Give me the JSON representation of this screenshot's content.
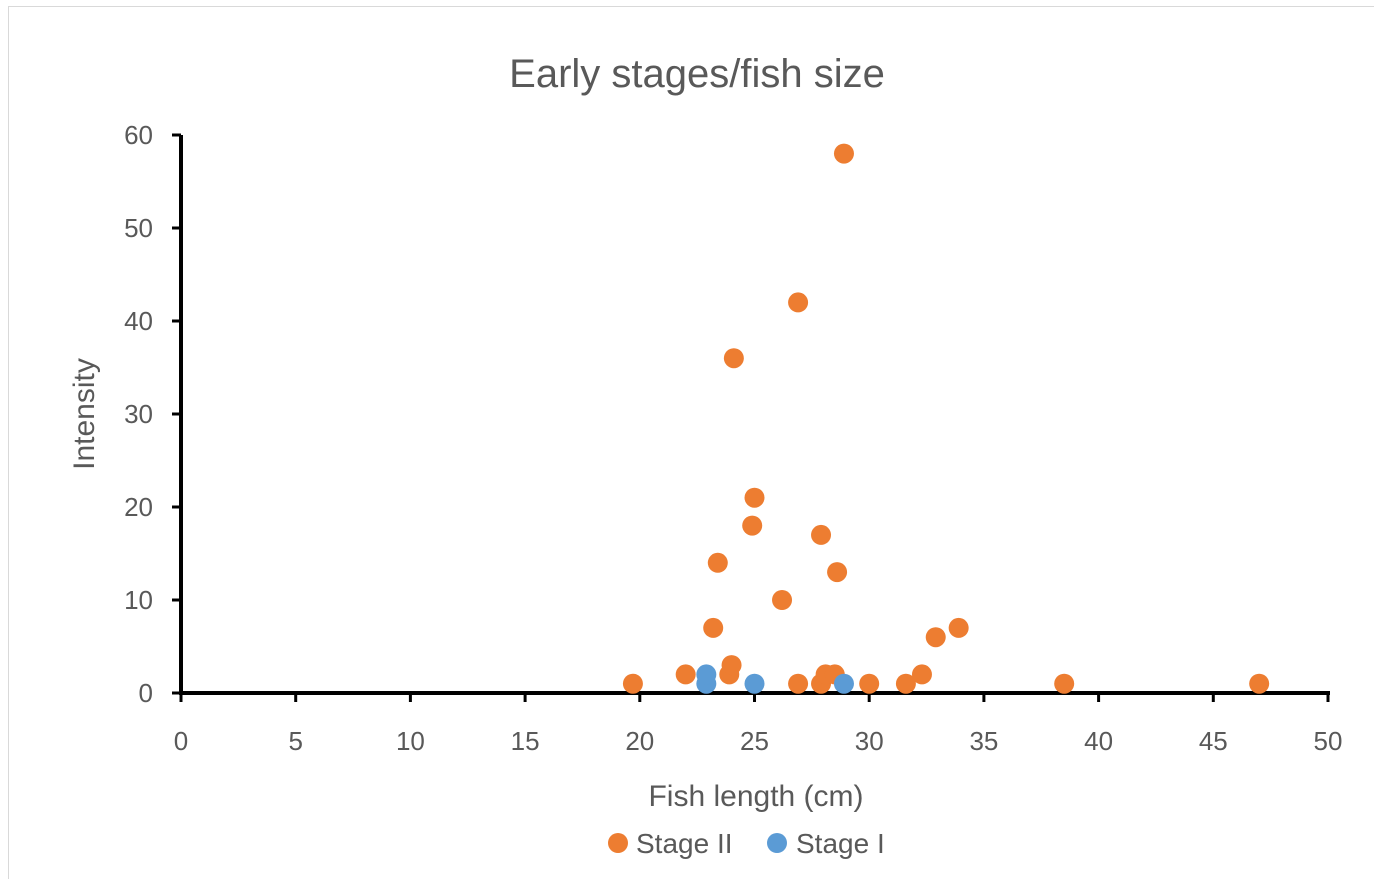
{
  "colors": {
    "stage2": "#ED7D31",
    "stage1": "#5B9BD5",
    "axis": "#000000",
    "text": "#595959"
  },
  "chart_data": {
    "type": "scatter",
    "title": "Early stages/fish size",
    "xlabel": "Fish length (cm)",
    "ylabel": "Intensity",
    "xlim": [
      0,
      50
    ],
    "ylim": [
      0,
      60
    ],
    "xticks": [
      0,
      5,
      10,
      15,
      20,
      25,
      30,
      35,
      40,
      45,
      50
    ],
    "yticks": [
      0,
      10,
      20,
      30,
      40,
      50,
      60
    ],
    "grid": false,
    "legend_position": "bottom",
    "series": [
      {
        "name": "Stage II",
        "color": "#ED7D31",
        "points": [
          {
            "x": 19.7,
            "y": 1
          },
          {
            "x": 22.0,
            "y": 2
          },
          {
            "x": 23.2,
            "y": 7
          },
          {
            "x": 23.4,
            "y": 14
          },
          {
            "x": 23.9,
            "y": 2
          },
          {
            "x": 24.0,
            "y": 3
          },
          {
            "x": 24.1,
            "y": 36
          },
          {
            "x": 24.9,
            "y": 18
          },
          {
            "x": 25.0,
            "y": 21
          },
          {
            "x": 26.2,
            "y": 10
          },
          {
            "x": 26.9,
            "y": 42
          },
          {
            "x": 26.9,
            "y": 1
          },
          {
            "x": 27.9,
            "y": 17
          },
          {
            "x": 27.9,
            "y": 1
          },
          {
            "x": 28.1,
            "y": 2
          },
          {
            "x": 28.5,
            "y": 2
          },
          {
            "x": 28.6,
            "y": 13
          },
          {
            "x": 28.9,
            "y": 58
          },
          {
            "x": 30.0,
            "y": 1
          },
          {
            "x": 31.6,
            "y": 1
          },
          {
            "x": 32.3,
            "y": 2
          },
          {
            "x": 32.9,
            "y": 6
          },
          {
            "x": 33.9,
            "y": 7
          },
          {
            "x": 38.5,
            "y": 1
          },
          {
            "x": 47.0,
            "y": 1
          }
        ]
      },
      {
        "name": "Stage I",
        "color": "#5B9BD5",
        "points": [
          {
            "x": 22.9,
            "y": 1
          },
          {
            "x": 22.9,
            "y": 2
          },
          {
            "x": 25.0,
            "y": 1
          },
          {
            "x": 28.9,
            "y": 1
          }
        ]
      }
    ]
  }
}
